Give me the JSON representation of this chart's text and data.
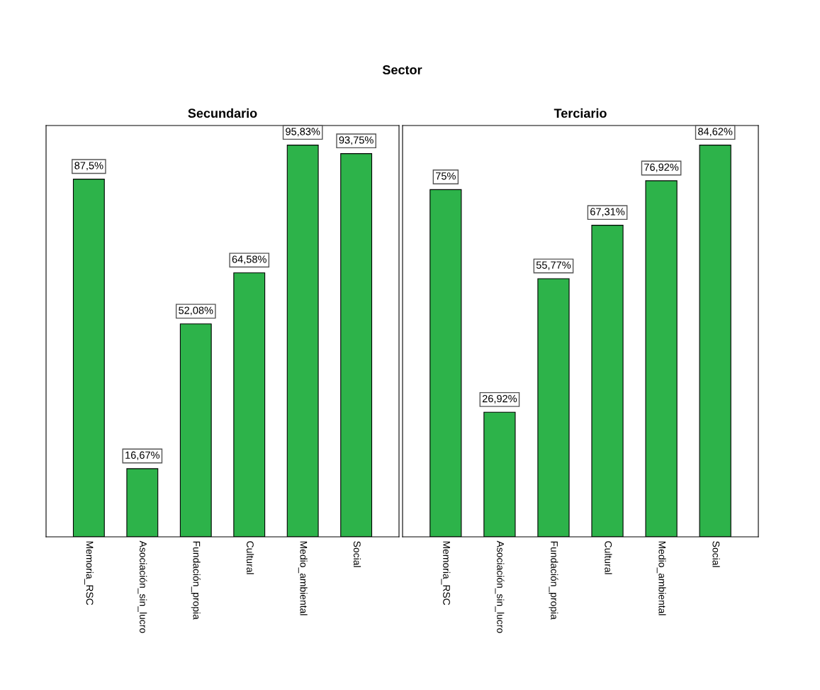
{
  "chart_data": [
    {
      "type": "bar",
      "title": "Secundario",
      "annotations": [
        "Sector"
      ],
      "categories": [
        "Memoria_RSC",
        "Asociación_sin_lucro",
        "Fundación_propia",
        "Cultural",
        "Medio_ambiental",
        "Social"
      ],
      "values": [
        87.5,
        16.67,
        52.08,
        64.58,
        95.83,
        93.75
      ],
      "value_labels": [
        "87,5%",
        "16,67%",
        "52,08%",
        "64,58%",
        "95,83%",
        "93,75%"
      ],
      "color": "#2db34a",
      "tick_labels": "x",
      "grid": false,
      "legend": false
    },
    {
      "type": "bar",
      "title": "Terciario",
      "categories": [
        "Memoria_RSC",
        "Asociación_sin_lucro",
        "Fundación_propia",
        "Cultural",
        "Medio_ambiental",
        "Social"
      ],
      "values": [
        75,
        26.92,
        55.77,
        67.31,
        76.92,
        84.62
      ],
      "value_labels": [
        "75%",
        "26,92%",
        "55,77%",
        "67,31%",
        "76,92%",
        "84,62%"
      ],
      "color": "#2db34a",
      "tick_labels": "x",
      "grid": false,
      "legend": false
    }
  ]
}
